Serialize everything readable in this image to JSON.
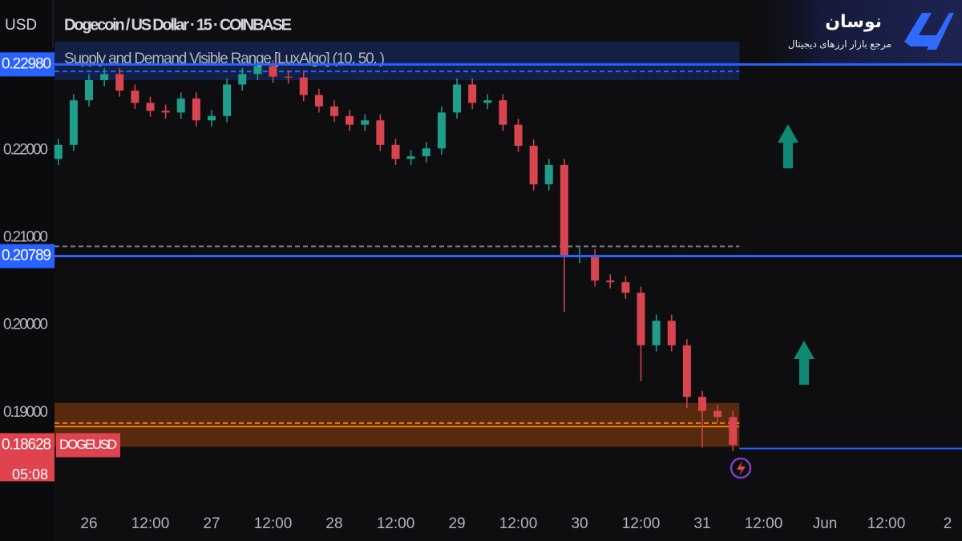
{
  "chart_data": {
    "type": "candlestick",
    "currency": "USD",
    "title": "Dogecoin / US Dollar · 15 · COINBASE",
    "indicator": "Supply and Demand Visible Range [LuxAlgo] (10, 50, )",
    "x": [
      -6,
      -3,
      0,
      3,
      6,
      9,
      12,
      15,
      18,
      21,
      24,
      27,
      30,
      33,
      36,
      39,
      42,
      45,
      48,
      51,
      54,
      57,
      60,
      63,
      66,
      69,
      72,
      75,
      78,
      81,
      84,
      87,
      90,
      93,
      96,
      99,
      102,
      105,
      108,
      111,
      114,
      117,
      120,
      123,
      126
    ],
    "open": [
      0.219,
      0.2206,
      0.2257,
      0.228,
      0.2287,
      0.2268,
      0.2254,
      0.2245,
      0.2243,
      0.2259,
      0.2234,
      0.2239,
      0.2275,
      0.2287,
      0.2296,
      0.2284,
      0.2283,
      0.2263,
      0.225,
      0.2239,
      0.2229,
      0.2234,
      0.2206,
      0.219,
      0.2193,
      0.2202,
      0.2243,
      0.2275,
      0.2254,
      0.2257,
      0.2229,
      0.2205,
      0.2161,
      0.2183,
      0.2078,
      0.208,
      0.2051,
      0.2049,
      0.2037,
      0.1977,
      0.2005,
      0.1977,
      0.1918,
      0.1902,
      0.1895
    ],
    "high": [
      0.2213,
      0.2264,
      0.2287,
      0.2294,
      0.2294,
      0.2275,
      0.2261,
      0.2252,
      0.2266,
      0.2266,
      0.2246,
      0.2282,
      0.2294,
      0.2303,
      0.2303,
      0.2291,
      0.229,
      0.227,
      0.2257,
      0.2246,
      0.2241,
      0.2241,
      0.2213,
      0.22,
      0.2209,
      0.225,
      0.2282,
      0.2282,
      0.2264,
      0.2264,
      0.2236,
      0.2212,
      0.219,
      0.219,
      0.209,
      0.2087,
      0.2058,
      0.2056,
      0.2044,
      0.2012,
      0.2012,
      0.1984,
      0.1925,
      0.1909,
      0.1902
    ],
    "low": [
      0.2183,
      0.2199,
      0.225,
      0.2273,
      0.2261,
      0.2247,
      0.2238,
      0.2236,
      0.2236,
      0.2227,
      0.2227,
      0.2232,
      0.2268,
      0.228,
      0.2277,
      0.2276,
      0.2256,
      0.2243,
      0.2232,
      0.2222,
      0.2222,
      0.2199,
      0.2183,
      0.2183,
      0.2186,
      0.2195,
      0.2236,
      0.2247,
      0.2247,
      0.2222,
      0.2198,
      0.2154,
      0.2154,
      0.2015,
      0.2071,
      0.2044,
      0.2042,
      0.203,
      0.1936,
      0.197,
      0.197,
      0.1905,
      0.186,
      0.1888,
      0.1856
    ],
    "close": [
      0.2206,
      0.2257,
      0.228,
      0.2287,
      0.2268,
      0.2254,
      0.2245,
      0.2243,
      0.2259,
      0.2234,
      0.2239,
      0.2275,
      0.2287,
      0.2296,
      0.2284,
      0.2283,
      0.2263,
      0.225,
      0.2239,
      0.2229,
      0.2234,
      0.2206,
      0.219,
      0.2193,
      0.2202,
      0.2243,
      0.2275,
      0.2254,
      0.2257,
      0.2229,
      0.2205,
      0.2161,
      0.2183,
      0.2078,
      0.208,
      0.2051,
      0.2049,
      0.2037,
      0.1977,
      0.2005,
      0.1977,
      0.1918,
      0.1902,
      0.1895,
      0.1863
    ],
    "up_color": "#1f9e8b",
    "down_color": "#d9454f",
    "xlim": [
      -6.745,
      170.82
    ],
    "xticks": [
      {
        "value": 0,
        "label": "26"
      },
      {
        "value": 12,
        "label": "12:00"
      },
      {
        "value": 24,
        "label": "27"
      },
      {
        "value": 36,
        "label": "12:00"
      },
      {
        "value": 48,
        "label": "28"
      },
      {
        "value": 60,
        "label": "12:00"
      },
      {
        "value": 72,
        "label": "29"
      },
      {
        "value": 84,
        "label": "12:00"
      },
      {
        "value": 96,
        "label": "30"
      },
      {
        "value": 108,
        "label": "12:00"
      },
      {
        "value": 120,
        "label": "31"
      },
      {
        "value": 132,
        "label": "12:00"
      },
      {
        "value": 144,
        "label": "Jun"
      },
      {
        "value": 156,
        "label": "12:00"
      },
      {
        "value": 168,
        "label": "2"
      }
    ],
    "ylim": [
      0.17945,
      0.23716
    ],
    "yticks": [
      {
        "value": 0.19,
        "label": "0.19000"
      },
      {
        "value": 0.2,
        "label": "0.20000"
      },
      {
        "value": 0.21,
        "label": "0.21000"
      },
      {
        "value": 0.22,
        "label": "0.22000"
      }
    ],
    "zones": [
      {
        "range": [
          0.228,
          0.2324
        ],
        "color": "rgba(41,98,255,0.22)"
      },
      {
        "range": [
          0.1861,
          0.1911
        ],
        "color": "rgba(178,78,10,0.45)"
      }
    ],
    "levels": [
      {
        "value": 0.229,
        "color": "#2962ff",
        "dash": true,
        "span": "zone"
      },
      {
        "value": 0.209,
        "color": "#787b86",
        "dash": true,
        "span": "zone"
      },
      {
        "value": 0.1888,
        "color": "#f57c00",
        "dash": true,
        "span": "zone"
      },
      {
        "value": 0.1884,
        "color": "#f57c00",
        "dash": false,
        "span": "zone"
      },
      {
        "value": 0.1859,
        "color": "#2962ff",
        "dash": false,
        "span": "right"
      }
    ],
    "price_labels": [
      {
        "value": 0.2298,
        "label": "0.22980",
        "color": "#2962ff",
        "line": true
      },
      {
        "value": 0.20789,
        "label": "0.20789",
        "color": "#2962ff",
        "line": true
      },
      {
        "value": 0.18628,
        "label": "0.18628",
        "color": "#e0434e",
        "line": false,
        "countdown": "05:08",
        "symbol": "DOGEUSD"
      }
    ]
  },
  "brand": {
    "name": "نوسان",
    "tagline": "مرجع بازار ارزهای دیجیتال"
  }
}
